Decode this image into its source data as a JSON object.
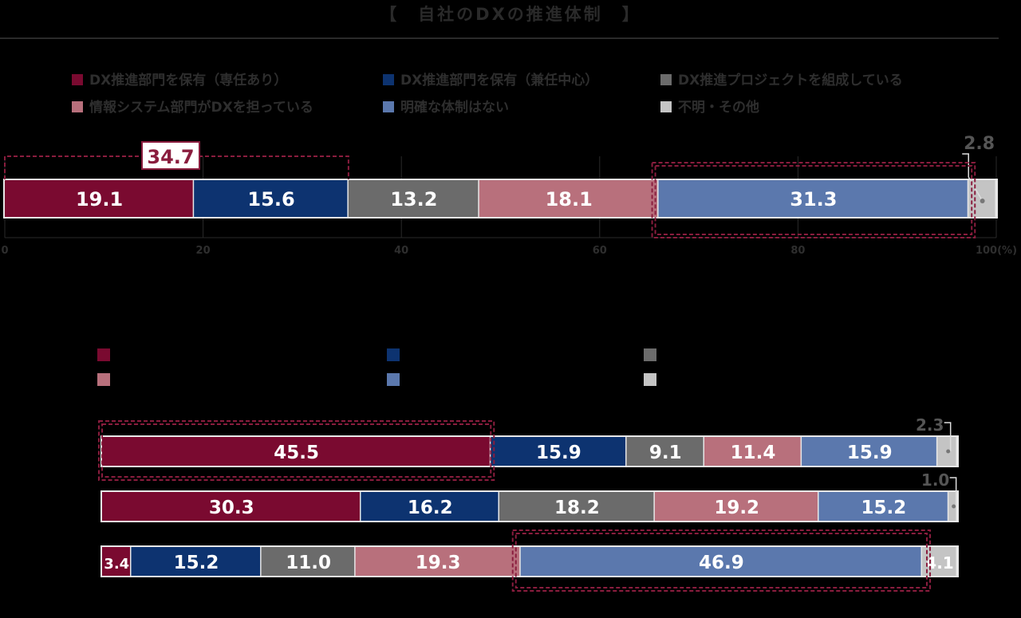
{
  "title": "【　自社のDXの推進体制　】",
  "legend": [
    {
      "label": "DX推進部門を保有（専任あり）",
      "color": "#7a0a30"
    },
    {
      "label": "DX推進部門を保有（兼任中心）",
      "color": "#0d3370"
    },
    {
      "label": "DX推進プロジェクトを組成している",
      "color": "#6b6b6b"
    },
    {
      "label": "情報システム部門がDXを担っている",
      "color": "#b8707c"
    },
    {
      "label": "明確な体制はない",
      "color": "#5b78ad"
    },
    {
      "label": "不明・その他",
      "color": "#c4c4c4"
    }
  ],
  "chart_data": [
    {
      "type": "bar",
      "stacked": true,
      "orientation": "horizontal",
      "xlim": [
        0,
        100
      ],
      "ticks": [
        "0",
        "20",
        "40",
        "60",
        "80",
        "100(%)"
      ],
      "series": [
        {
          "name": "DX推進部門を保有（専任あり）",
          "values": [
            19.1
          ]
        },
        {
          "name": "DX推進部門を保有（兼任中心）",
          "values": [
            15.6
          ]
        },
        {
          "name": "DX推進プロジェクトを組成している",
          "values": [
            13.2
          ]
        },
        {
          "name": "情報システム部門がDXを担っている",
          "values": [
            18.1
          ]
        },
        {
          "name": "明確な体制はない",
          "values": [
            31.3
          ]
        },
        {
          "name": "不明・その他",
          "values": [
            2.8
          ]
        }
      ],
      "annotations": [
        {
          "text": "34.7"
        }
      ]
    },
    {
      "type": "bar",
      "stacked": true,
      "orientation": "horizontal",
      "xlim": [
        0,
        100
      ],
      "series": [
        {
          "name": "DX推進部門を保有（専任あり）",
          "values": [
            45.5,
            30.3,
            3.4
          ]
        },
        {
          "name": "DX推進部門を保有（兼任中心）",
          "values": [
            15.9,
            16.2,
            15.2
          ]
        },
        {
          "name": "DX推進プロジェクトを組成している",
          "values": [
            9.1,
            18.2,
            11.0
          ]
        },
        {
          "name": "情報システム部門がDXを担っている",
          "values": [
            11.4,
            19.2,
            19.3
          ]
        },
        {
          "name": "明確な体制はない",
          "values": [
            15.9,
            15.2,
            46.9
          ]
        },
        {
          "name": "不明・その他",
          "values": [
            2.3,
            1.0,
            4.1
          ]
        }
      ]
    }
  ]
}
